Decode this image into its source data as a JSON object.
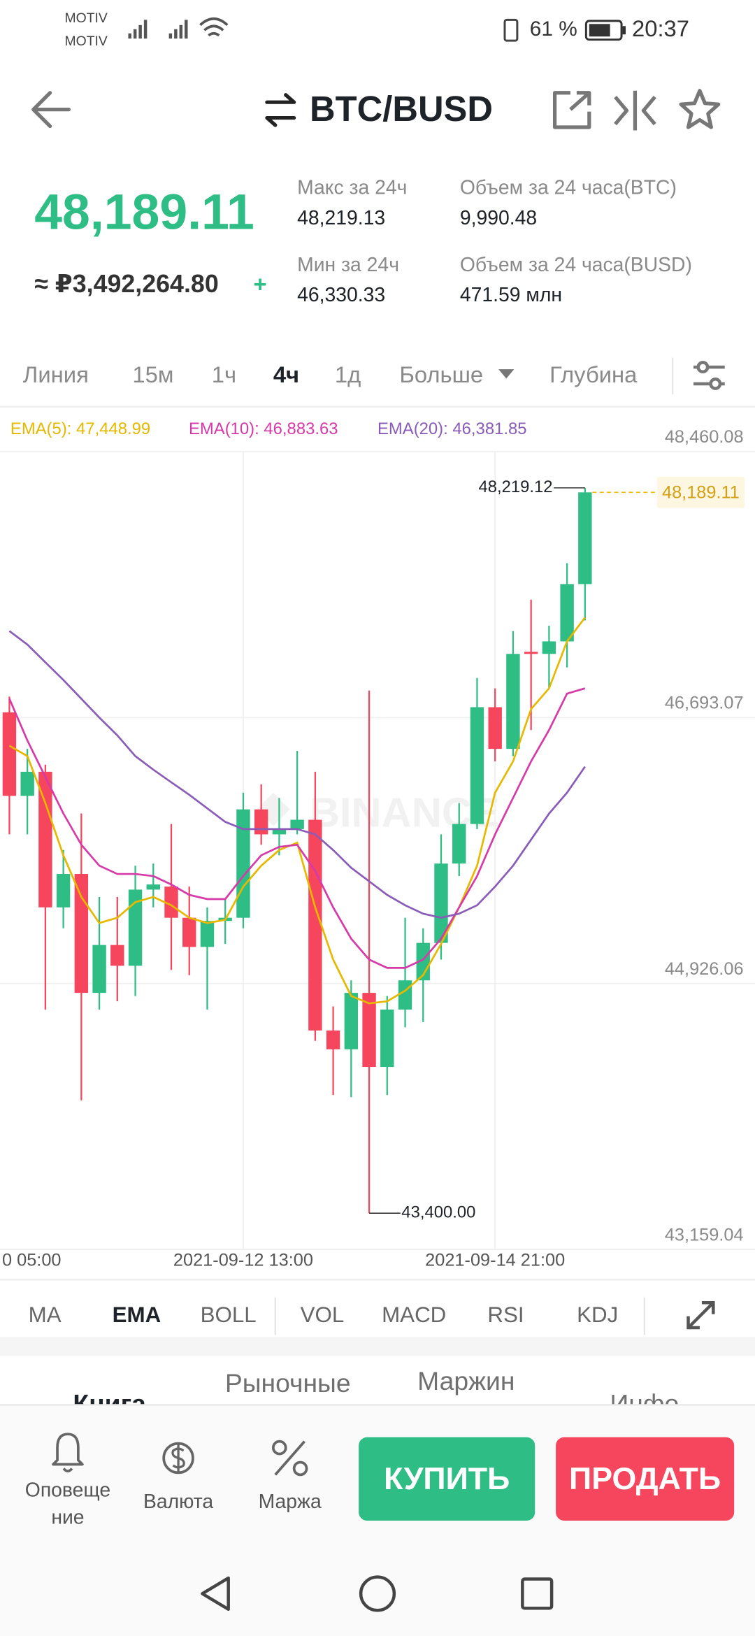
{
  "status_bar": {
    "carrier_1": "MOTIV",
    "carrier_2": "MOTIV",
    "battery": "61 %",
    "time": "20:37"
  },
  "header": {
    "pair": "BTC/BUSD"
  },
  "ticker": {
    "price": "48,189.11",
    "fiat": "≈ ₽3,492,264.80",
    "change_sign": "+",
    "stats": [
      {
        "label": "Макс за 24ч",
        "value": "48,219.13"
      },
      {
        "label": "Объем за 24 часа(BTC)",
        "value": "9,990.48"
      },
      {
        "label": "Мин за 24ч",
        "value": "46,330.33"
      },
      {
        "label": "Объем за 24 часа(BUSD)",
        "value": "471.59 млн"
      }
    ]
  },
  "intervals": [
    "Линия",
    "15м",
    "1ч",
    "4ч",
    "1д",
    "Больше",
    "Глубина"
  ],
  "active_interval": 3,
  "chart_data": {
    "type": "candlestick",
    "watermark": "BINANCE",
    "up_color": "#2ebd85",
    "down_color": "#f6465d",
    "grid": true,
    "x_edge_label": "0 05:00",
    "categories": [
      null,
      null,
      null,
      null,
      null,
      null,
      null,
      null,
      null,
      null,
      null,
      null,
      null,
      "2021-09-12 13:00",
      null,
      null,
      null,
      null,
      null,
      null,
      null,
      null,
      null,
      null,
      null,
      null,
      null,
      "2021-09-14 21:00",
      null,
      null,
      null,
      null,
      null
    ],
    "open": [
      46728,
      46173,
      46333,
      45432,
      45654,
      44864,
      45182,
      45044,
      45550,
      45570,
      45363,
      45169,
      45342,
      45363,
      46083,
      45917,
      45952,
      46014,
      44614,
      44489,
      44864,
      44372,
      44753,
      44947,
      45196,
      45723,
      45986,
      46762,
      46485,
      47130,
      47116,
      47199,
      47580
    ],
    "high": [
      46832,
      46485,
      46380,
      45813,
      46056,
      45501,
      45501,
      45709,
      45723,
      45986,
      45570,
      45432,
      45487,
      46194,
      46250,
      46159,
      46471,
      46333,
      44774,
      44947,
      46873,
      44843,
      45363,
      45293,
      45917,
      46125,
      46956,
      46887,
      47268,
      47476,
      47303,
      47719,
      48219.12
    ],
    "low": [
      45917,
      45917,
      44753,
      45293,
      44150,
      44753,
      44808,
      44843,
      45432,
      45016,
      44982,
      44753,
      45189,
      45293,
      45848,
      45778,
      45917,
      44545,
      44185,
      44171,
      43400,
      44185,
      44635,
      44670,
      45085,
      45640,
      45952,
      46402,
      46437,
      46610,
      46887,
      47026,
      47338
    ],
    "close": [
      46173,
      46333,
      45432,
      45654,
      44864,
      45182,
      45044,
      45550,
      45584,
      45363,
      45169,
      45342,
      45363,
      46083,
      45917,
      45952,
      46014,
      44614,
      44489,
      44864,
      44372,
      44753,
      44947,
      45196,
      45723,
      45986,
      46762,
      46485,
      47116,
      47116,
      47199,
      47580,
      48189.11
    ],
    "series": [
      {
        "name": "EMA(5): 47,448.99",
        "color": "#e6b800",
        "values": [
          46506,
          46437,
          46125,
          45778,
          45501,
          45328,
          45363,
          45466,
          45501,
          45446,
          45363,
          45328,
          45349,
          45570,
          45709,
          45813,
          45862,
          45432,
          45085,
          44843,
          44794,
          44808,
          44878,
          44982,
          45189,
          45432,
          45709,
          46194,
          46402,
          46749,
          46887,
          47199,
          47358
        ]
      },
      {
        "name": "EMA(10): 46,883.63",
        "color": "#d63aa8",
        "values": [
          46818,
          46541,
          46298,
          46056,
          45848,
          45709,
          45654,
          45654,
          45640,
          45584,
          45515,
          45487,
          45487,
          45640,
          45778,
          45834,
          45848,
          45674,
          45432,
          45224,
          45085,
          45030,
          45030,
          45085,
          45224,
          45432,
          45640,
          45917,
          46159,
          46402,
          46610,
          46852,
          46887
        ]
      },
      {
        "name": "EMA(20): 46,381.85",
        "color": "#8a5cb8",
        "values": [
          47268,
          47178,
          47060,
          46943,
          46818,
          46693,
          46575,
          46437,
          46347,
          46263,
          46180,
          46090,
          46000,
          45952,
          45952,
          45952,
          45952,
          45917,
          45813,
          45695,
          45605,
          45515,
          45446,
          45390,
          45363,
          45390,
          45446,
          45570,
          45709,
          45882,
          46055,
          46194,
          46367
        ]
      }
    ],
    "ylim": [
      43159.04,
      48460.08
    ],
    "yticks": [
      {
        "value": 48460.08,
        "label": "48,460.08"
      },
      {
        "value": 46693.07,
        "label": "46,693.07"
      },
      {
        "value": 44926.06,
        "label": "44,926.06"
      },
      {
        "value": 43159.04,
        "label": "43,159.04"
      }
    ],
    "high_label": {
      "value": 48219.12,
      "label": "48,219.12"
    },
    "low_label": {
      "value": 43400,
      "label": "43,400.00"
    },
    "last_price": {
      "value": 48189.11,
      "label": "48,189.11"
    }
  },
  "indicators": [
    "MA",
    "EMA",
    "BOLL",
    "VOL",
    "MACD",
    "RSI",
    "KDJ"
  ],
  "active_indicator": 1,
  "section_tabs": [
    "Книга",
    "Рыночные",
    "Маржин",
    "Инфо"
  ],
  "bottom_nav": [
    {
      "label_lines": [
        "Оповеще",
        "ние"
      ]
    },
    {
      "label_lines": [
        "Валюта"
      ]
    },
    {
      "label_lines": [
        "Маржа"
      ]
    }
  ],
  "buttons": {
    "buy": "КУПИТЬ",
    "sell": "ПРОДАТЬ"
  }
}
